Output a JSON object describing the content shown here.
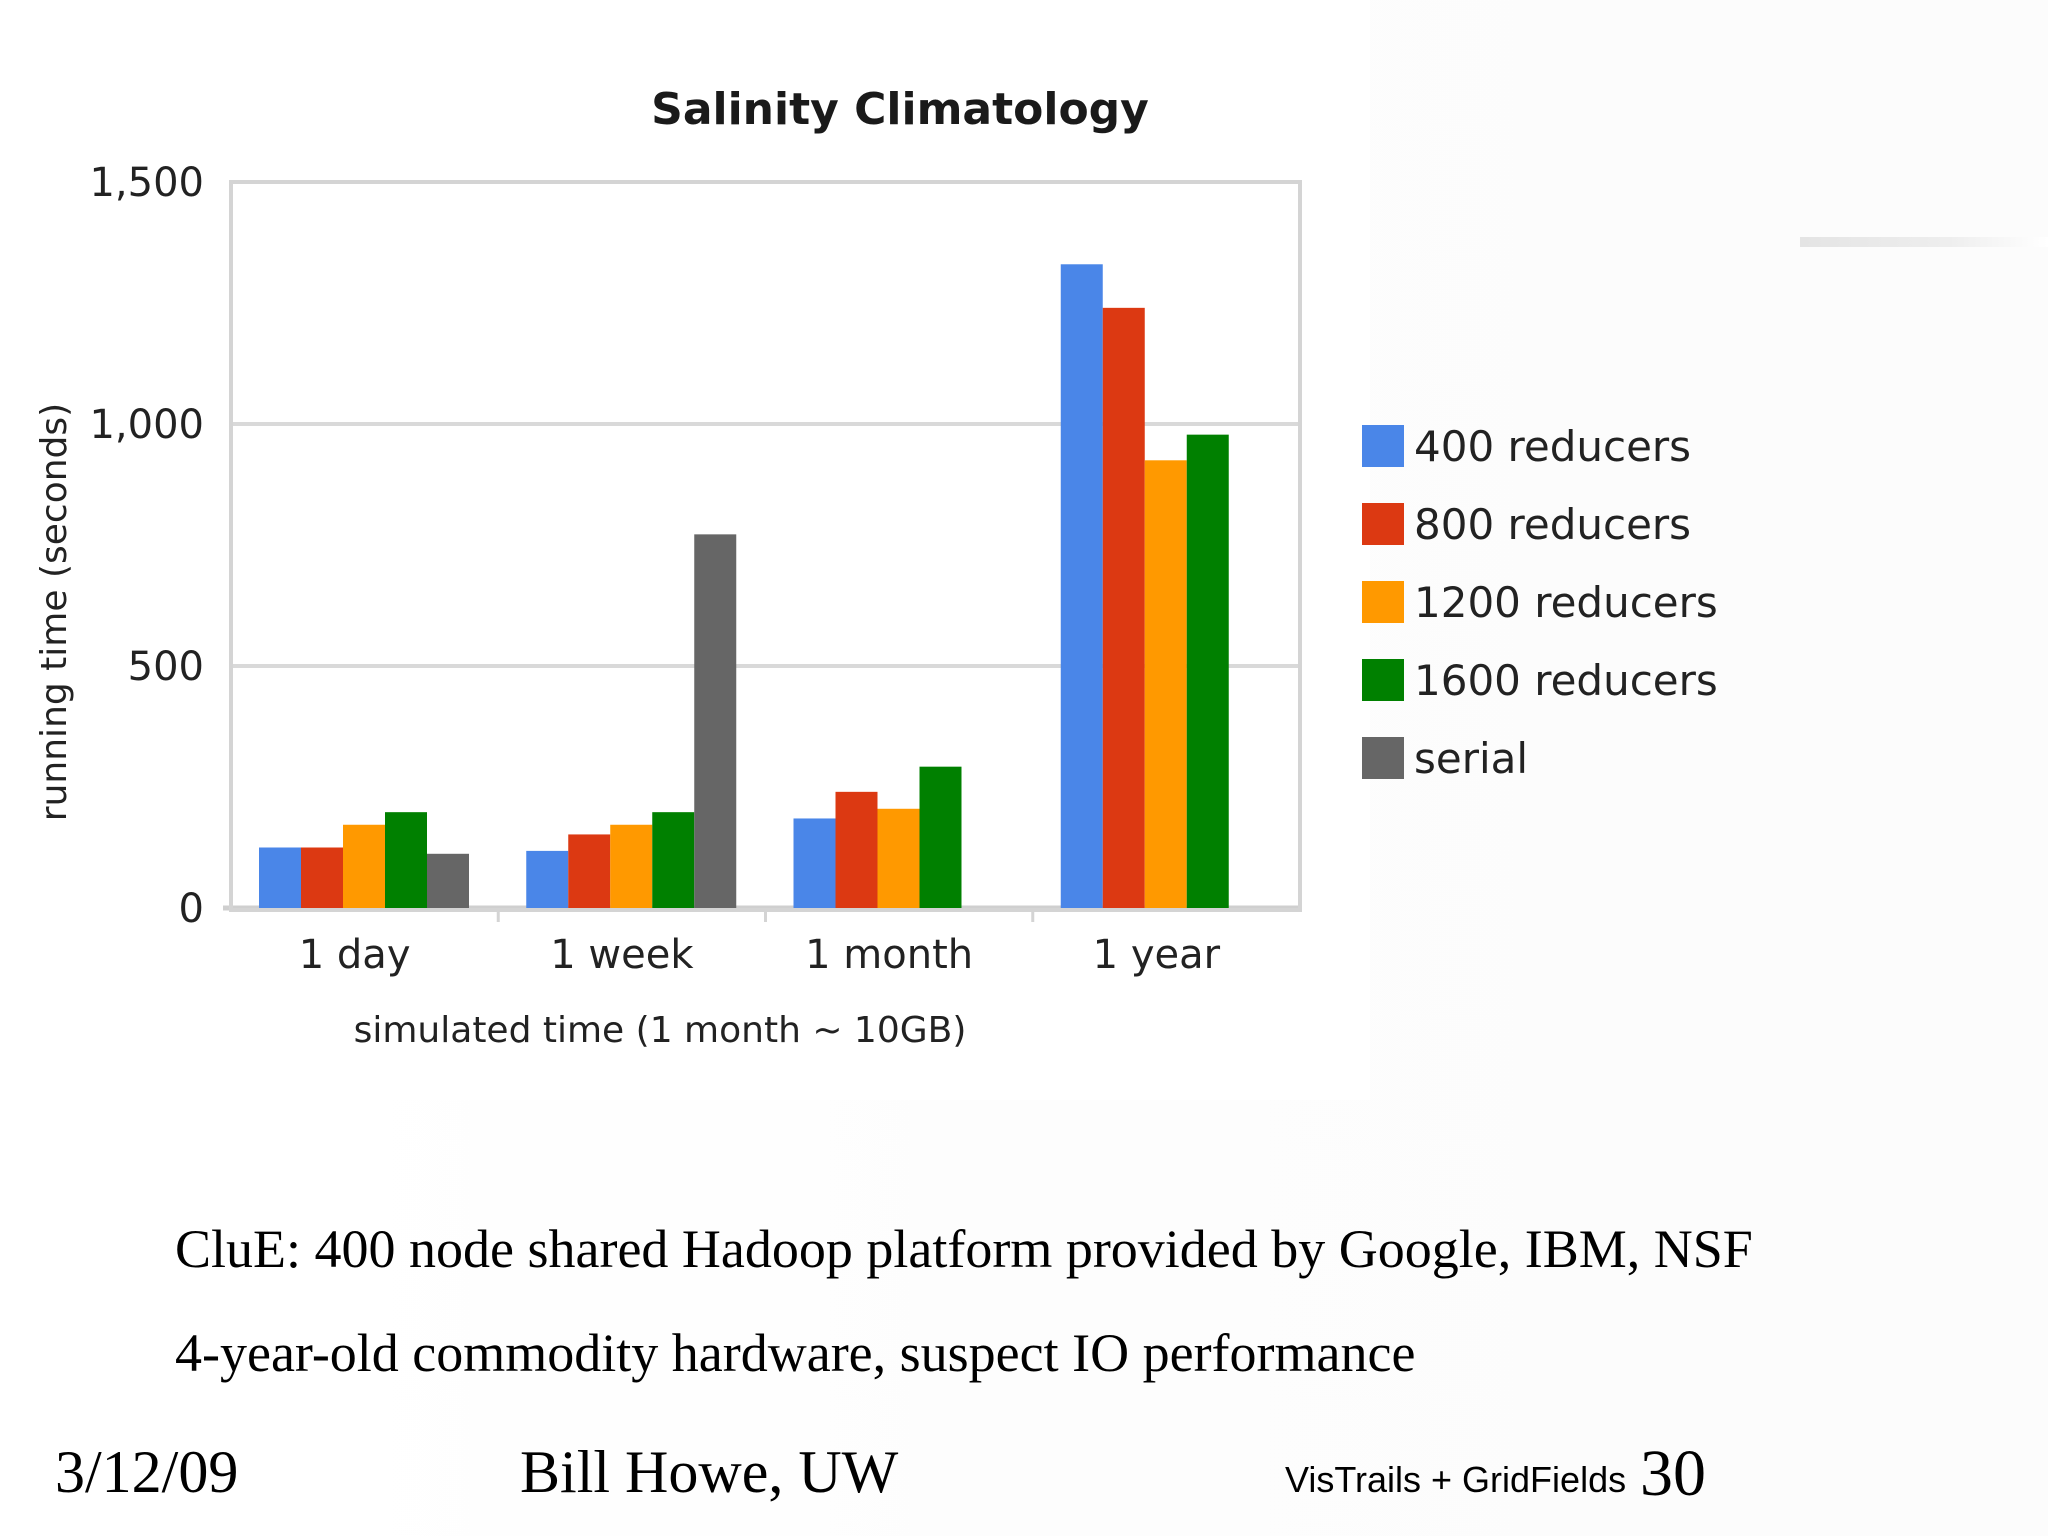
{
  "chart_data": {
    "type": "bar",
    "title": "Salinity Climatology",
    "xlabel": "simulated time (1 month ~ 10GB)",
    "ylabel": "running time (seconds)",
    "ylim": [
      0,
      1500
    ],
    "yticks": [
      0,
      500,
      1000,
      1500
    ],
    "ytick_labels": [
      "0",
      "500",
      "1,000",
      "1,500"
    ],
    "grid": true,
    "legend_position": "right",
    "categories": [
      "1 day",
      "1 week",
      "1 month",
      "1 year"
    ],
    "series": [
      {
        "name": "400 reducers",
        "color": "#4a86e8",
        "values": [
          125,
          118,
          185,
          1330
        ]
      },
      {
        "name": "800 reducers",
        "color": "#dc3912",
        "values": [
          125,
          152,
          240,
          1240
        ]
      },
      {
        "name": "1200 reducers",
        "color": "#ff9900",
        "values": [
          172,
          172,
          205,
          925
        ]
      },
      {
        "name": "1600 reducers",
        "color": "#008000",
        "values": [
          198,
          198,
          292,
          978
        ]
      },
      {
        "name": "serial",
        "color": "#666666",
        "values": [
          112,
          772,
          null,
          null
        ]
      }
    ]
  },
  "slide": {
    "bullets": [
      "CluE: 400 node shared Hadoop platform provided by Google, IBM, NSF",
      "4-year-old commodity hardware, suspect IO performance"
    ],
    "footer": {
      "date": "3/12/09",
      "author": "Bill Howe, UW",
      "topic": "VisTrails + GridFields",
      "page": "30"
    }
  }
}
